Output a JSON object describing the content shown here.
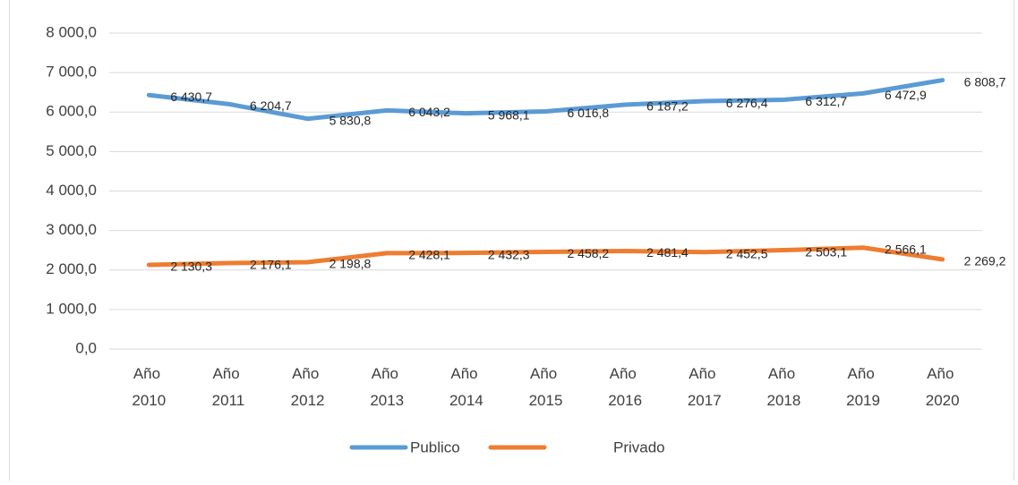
{
  "chart_data": {
    "type": "line",
    "categories": [
      "Año 2010",
      "Año 2011",
      "Año 2012",
      "Año 2013",
      "Año 2014",
      "Año 2015",
      "Año 2016",
      "Año 2017",
      "Año 2018",
      "Año 2019",
      "Año 2020"
    ],
    "series": [
      {
        "name": "Publico",
        "color": "#5b9bd5",
        "values": [
          6430.7,
          6204.7,
          5830.8,
          6043.2,
          5968.1,
          6016.8,
          6187.2,
          6276.4,
          6312.7,
          6472.9,
          6808.7
        ],
        "value_labels": [
          "6 430,7",
          "6 204,7",
          "5 830,8",
          "6 043,2",
          "5 968,1",
          "6 016,8",
          "6 187,2",
          "6 276,4",
          "6 312,7",
          "6 472,9",
          "6 808,7"
        ]
      },
      {
        "name": "Privado",
        "color": "#ed7d31",
        "values": [
          2130.3,
          2176.1,
          2198.8,
          2428.1,
          2432.3,
          2458.2,
          2481.4,
          2452.5,
          2503.1,
          2566.1,
          2269.2
        ],
        "value_labels": [
          "2 130,3",
          "2 176,1",
          "2 198,8",
          "2 428,1",
          "2 432,3",
          "2 458,2",
          "2 481,4",
          "2 452,5",
          "2 503,1",
          "2 566,1",
          "2 269,2"
        ]
      }
    ],
    "ylim": [
      0,
      8000
    ],
    "yticks": [
      {
        "value": 0,
        "label": "0,0"
      },
      {
        "value": 1000,
        "label": "1 000,0"
      },
      {
        "value": 2000,
        "label": "2 000,0"
      },
      {
        "value": 3000,
        "label": "3 000,0"
      },
      {
        "value": 4000,
        "label": "4 000,0"
      },
      {
        "value": 5000,
        "label": "5 000,0"
      },
      {
        "value": 6000,
        "label": "6 000,0"
      },
      {
        "value": 7000,
        "label": "7 000,0"
      },
      {
        "value": 8000,
        "label": "8 000,0"
      }
    ],
    "grid": true,
    "legend": "bottom"
  }
}
